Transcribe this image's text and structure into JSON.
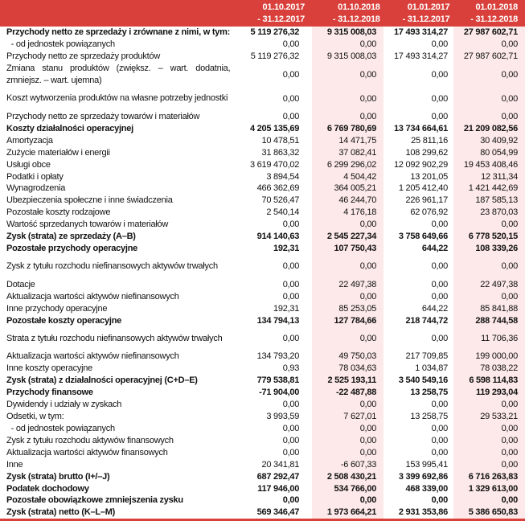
{
  "colors": {
    "header": "#d9403b",
    "shaded_column": "#fde9e9"
  },
  "columns": [
    {
      "l1": "01.10.2017",
      "l2": "- 31.12.2017"
    },
    {
      "l1": "01.10.2018",
      "l2": "- 31.12.2018"
    },
    {
      "l1": "01.01.2017",
      "l2": "- 31.12.2017"
    },
    {
      "l1": "01.01.2018",
      "l2": "- 31.12.2018"
    }
  ],
  "rows": [
    {
      "label": "Przychody netto ze sprzedaży i zrównane z nimi, w tym:",
      "bold": true,
      "v": [
        "5 119 276,32",
        "9 315 008,03",
        "17 493 314,27",
        "27 987 602,71"
      ]
    },
    {
      "label": "  - od jednostek powiązanych",
      "v": [
        "0,00",
        "0,00",
        "0,00",
        "0,00"
      ]
    },
    {
      "label": "Przychody netto ze sprzedaży produktów",
      "v": [
        "5 119 276,32",
        "9 315 008,03",
        "17 493 314,27",
        "27 987 602,71"
      ]
    },
    {
      "label": "Zmiana stanu produktów (zwiększ. – wart. dodatnia, zmniejsz. – wart. ujemna)",
      "lines": 2,
      "v": [
        "0,00",
        "0,00",
        "0,00",
        "0,00"
      ]
    },
    {
      "label": "Koszt wytworzenia produktów na własne potrzeby jednostki",
      "lines": 2,
      "v": [
        "0,00",
        "0,00",
        "0,00",
        "0,00"
      ]
    },
    {
      "label": "Przychody netto ze sprzedaży towarów i materiałów",
      "v": [
        "0,00",
        "0,00",
        "0,00",
        "0,00"
      ]
    },
    {
      "label": "Koszty działalności operacyjnej",
      "bold": true,
      "v": [
        "4 205 135,69",
        "6 769 780,69",
        "13 734 664,61",
        "21 209 082,56"
      ]
    },
    {
      "label": "Amortyzacja",
      "v": [
        "10 478,51",
        "14 471,75",
        "25 811,16",
        "30 409,92"
      ]
    },
    {
      "label": "Zużycie materiałów i energii",
      "v": [
        "31 863,32",
        "37 082,41",
        "108 299,62",
        "80 054,99"
      ]
    },
    {
      "label": "Usługi obce",
      "v": [
        "3 619 470,02",
        "6 299 296,02",
        "12 092 902,29",
        "19 453 408,46"
      ]
    },
    {
      "label": "Podatki i opłaty",
      "v": [
        "3 894,54",
        "4 504,42",
        "13 201,05",
        "12 311,34"
      ]
    },
    {
      "label": "Wynagrodzenia",
      "v": [
        "466 362,69",
        "364 005,21",
        "1 205 412,40",
        "1 421 442,69"
      ]
    },
    {
      "label": "Ubezpieczenia społeczne i inne świadczenia",
      "v": [
        "70 526,47",
        "46 244,70",
        "226 961,17",
        "187 585,13"
      ]
    },
    {
      "label": "Pozostałe koszty rodzajowe",
      "v": [
        "2 540,14",
        "4 176,18",
        "62 076,92",
        "23 870,03"
      ]
    },
    {
      "label": "Wartość sprzedanych towarów i materiałów",
      "v": [
        "0,00",
        "0,00",
        "0,00",
        "0,00"
      ]
    },
    {
      "label": "Zysk (strata) ze sprzedaży (A–B)",
      "bold": true,
      "v": [
        "914 140,63",
        "2 545 227,34",
        "3 758 649,66",
        "6 778 520,15"
      ]
    },
    {
      "label": "Pozostałe przychody operacyjne",
      "bold": true,
      "v": [
        "192,31",
        "107 750,43",
        "644,22",
        "108 339,26"
      ]
    },
    {
      "label": "Zysk z tytułu rozchodu niefinansowych aktywów trwałych",
      "lines": 2,
      "v": [
        "0,00",
        "0,00",
        "0,00",
        "0,00"
      ]
    },
    {
      "label": "Dotacje",
      "v": [
        "0,00",
        "22 497,38",
        "0,00",
        "22 497,38"
      ]
    },
    {
      "label": "Aktualizacja wartości aktywów niefinansowych",
      "v": [
        "0,00",
        "0,00",
        "0,00",
        "0,00"
      ]
    },
    {
      "label": "Inne przychody operacyjne",
      "v": [
        "192,31",
        "85 253,05",
        "644,22",
        "85 841,88"
      ]
    },
    {
      "label": "Pozostałe koszty operacyjne",
      "bold": true,
      "v": [
        "134 794,13",
        "127 784,66",
        "218 744,72",
        "288 744,58"
      ]
    },
    {
      "label": "Strata z tytułu rozchodu niefinansowych aktywów trwałych",
      "lines": 2,
      "v": [
        "0,00",
        "0,00",
        "0,00",
        "11 706,36"
      ]
    },
    {
      "label": "Aktualizacja wartości aktywów niefinansowych",
      "v": [
        "134 793,20",
        "49 750,03",
        "217 709,85",
        "199 000,00"
      ]
    },
    {
      "label": "Inne koszty operacyjne",
      "v": [
        "0,93",
        "78 034,63",
        "1 034,87",
        "78 038,22"
      ]
    },
    {
      "label": "Zysk (strata) z działalności operacyjnej (C+D–E)",
      "bold": true,
      "v": [
        "779 538,81",
        "2 525 193,11",
        "3 540 549,16",
        "6 598 114,83"
      ]
    },
    {
      "label": "Przychody finansowe",
      "bold": true,
      "v": [
        "-71 904,00",
        "-22 487,88",
        "13 258,75",
        "119 293,04"
      ]
    },
    {
      "label": "Dywidendy i udziały w zyskach",
      "v": [
        "0,00",
        "0,00",
        "0,00",
        "0,00"
      ]
    },
    {
      "label": "Odsetki, w tym:",
      "v": [
        "3 993,59",
        "7 627,01",
        "13 258,75",
        "29 533,21"
      ]
    },
    {
      "label": "  - od jednostek powiązanych",
      "v": [
        "0,00",
        "0,00",
        "0,00",
        "0,00"
      ]
    },
    {
      "label": "Zysk z tytułu rozchodu aktywów finansowych",
      "v": [
        "0,00",
        "0,00",
        "0,00",
        "0,00"
      ]
    },
    {
      "label": "Aktualizacja wartości aktywów finansowych",
      "v": [
        "0,00",
        "0,00",
        "0,00",
        "0,00"
      ]
    },
    {
      "label": "Inne",
      "v": [
        "20 341,81",
        "-6 607,33",
        "153 995,41",
        "0,00"
      ]
    },
    {
      "label": "Zysk (strata) brutto (I+/–J)",
      "bold": true,
      "v": [
        "687 292,47",
        "2 508 430,21",
        "3 399 692,86",
        "6 716 263,83"
      ]
    },
    {
      "label": "Podatek dochodowy",
      "bold": true,
      "v": [
        "117 946,00",
        "534 766,00",
        "468 339,00",
        "1 329 613,00"
      ]
    },
    {
      "label": "Pozostałe obowiązkowe zmniejszenia zysku",
      "bold": true,
      "v": [
        "0,00",
        "0,00",
        "0,00",
        "0,00"
      ]
    },
    {
      "label": "Zysk (strata) netto (K–L–M)",
      "bold": true,
      "v": [
        "569 346,47",
        "1 973 664,21",
        "2 931 353,86",
        "5 386 650,83"
      ]
    }
  ]
}
